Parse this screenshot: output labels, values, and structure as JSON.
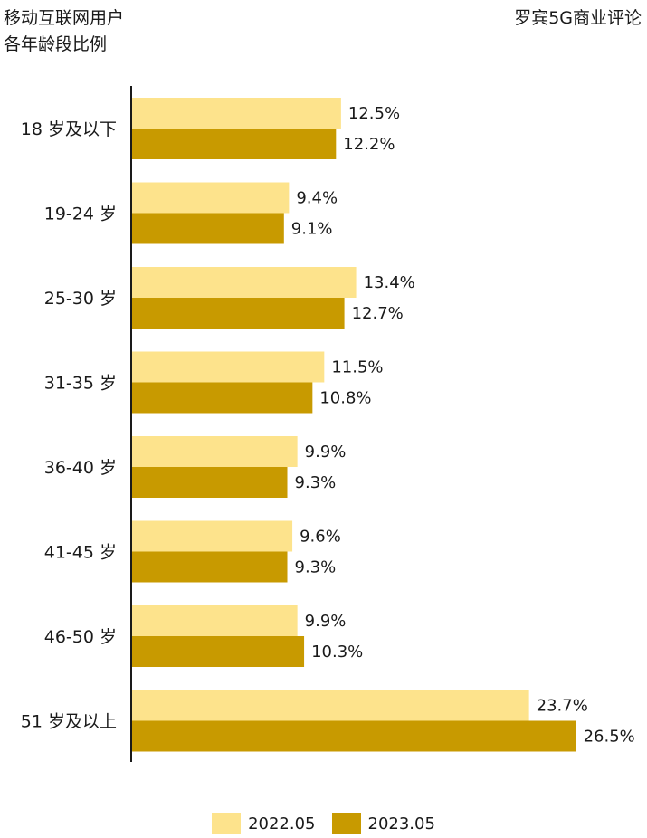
{
  "title_lines": [
    "移动互联网用户",
    "各年龄段比例"
  ],
  "source": "罗宾5G商业评论",
  "colors": {
    "series_2022": "#FDE38C",
    "series_2023": "#C89A00",
    "axis": "#1a1a1a"
  },
  "chart_data": {
    "type": "bar",
    "orientation": "horizontal",
    "title": "移动互联网用户各年龄段比例",
    "categories": [
      "18 岁及以下",
      "19-24 岁",
      "25-30 岁",
      "31-35 岁",
      "36-40 岁",
      "41-45 岁",
      "46-50 岁",
      "51 岁及以上"
    ],
    "series": [
      {
        "name": "2022.05",
        "values": [
          12.5,
          9.4,
          13.4,
          11.5,
          9.9,
          9.6,
          9.9,
          23.7
        ],
        "labels": [
          "12.5%",
          "9.4%",
          "13.4%",
          "11.5%",
          "9.9%",
          "9.6%",
          "9.9%",
          "23.7%"
        ]
      },
      {
        "name": "2023.05",
        "values": [
          12.2,
          9.1,
          12.7,
          10.8,
          9.3,
          9.3,
          10.3,
          26.5
        ],
        "labels": [
          "12.2%",
          "9.1%",
          "12.7%",
          "10.8%",
          "9.3%",
          "9.3%",
          "10.3%",
          "26.5%"
        ]
      }
    ],
    "xlim": [
      0,
      30
    ],
    "grid": false,
    "legend_position": "bottom-center"
  }
}
